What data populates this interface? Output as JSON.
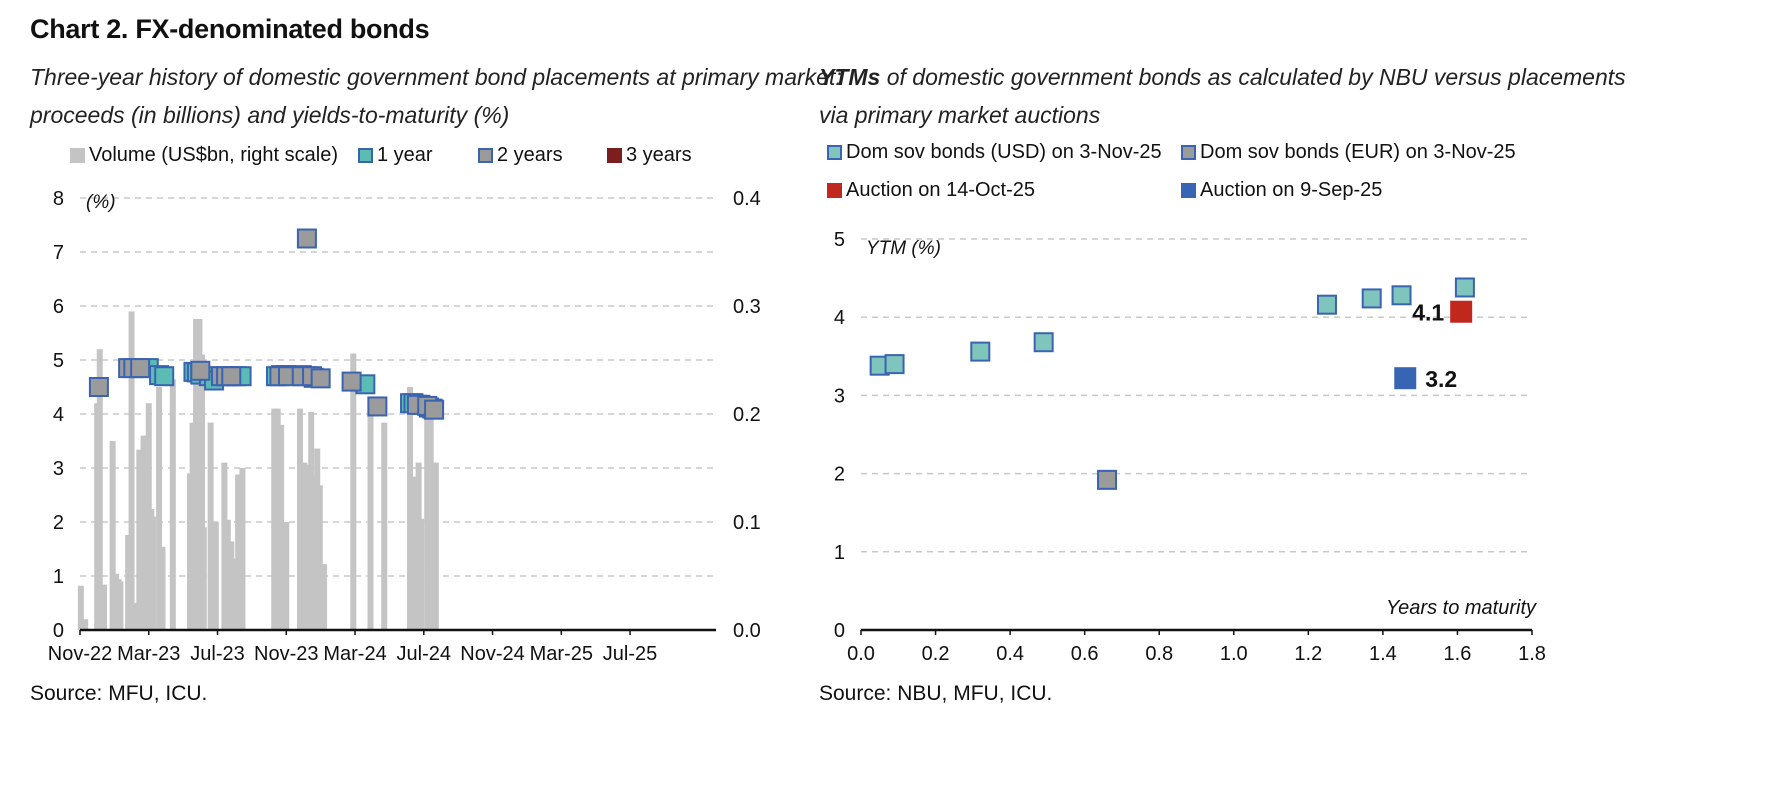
{
  "title": "Chart 2. FX-denominated bonds",
  "left": {
    "subtitle_line1": "Three-year history of domestic government bond placements at primary market:",
    "subtitle_line2": "proceeds (in billions) and yields-to-maturity (%)",
    "source": "Source: MFU, ICU."
  },
  "right": {
    "subtitle_line1_bold": "YTMs",
    "subtitle_line1_rest": " of domestic government bonds as calculated by NBU versus placements",
    "subtitle_line2": "via primary market auctions",
    "source": "Source: NBU, MFU, ICU."
  },
  "colors": {
    "volume": "#c4c4c4",
    "one_year_fill": "#5bbcb6",
    "two_year_fill": "#9b9b9b",
    "three_year_fill": "#7a1e1e",
    "usd_fill": "#7fc4bd",
    "eur_fill": "#9b9b9b",
    "marker_border": "#3a63b0",
    "auction_oct": "#c0281e",
    "auction_sep": "#3765b3"
  },
  "chart_data": [
    {
      "type": "bar+scatter",
      "legend": [
        {
          "label": "Volume (US$bn, right scale)",
          "kind": "volume"
        },
        {
          "label": "1 year",
          "kind": "one_year"
        },
        {
          "label": "2 years",
          "kind": "two_year"
        },
        {
          "label": "3 years",
          "kind": "three_year"
        }
      ],
      "y_left": {
        "label": "(%)",
        "min": 0,
        "max": 8,
        "ticks": [
          "0",
          "1",
          "2",
          "3",
          "4",
          "5",
          "6",
          "7",
          "8"
        ]
      },
      "y_right": {
        "min": 0,
        "max": 0.4,
        "ticks": [
          "0.0",
          "0.1",
          "0.2",
          "0.3",
          "0.4"
        ]
      },
      "x_ticks": [
        "Nov-22",
        "Mar-23",
        "Jul-23",
        "Nov-23",
        "Mar-24",
        "Jul-24",
        "Nov-24",
        "Mar-25",
        "Jul-25"
      ],
      "x_range_months": 37,
      "volume_bars": [
        [
          0.05,
          0.041
        ],
        [
          0.3,
          0.01
        ],
        [
          1.0,
          0.21
        ],
        [
          1.15,
          0.26
        ],
        [
          1.4,
          0.042
        ],
        [
          1.9,
          0.175
        ],
        [
          2.1,
          0.052
        ],
        [
          2.25,
          0.047
        ],
        [
          2.35,
          0.045
        ],
        [
          2.8,
          0.088
        ],
        [
          3.0,
          0.295
        ],
        [
          3.2,
          0.025
        ],
        [
          3.45,
          0.167
        ],
        [
          3.55,
          0.12
        ],
        [
          3.7,
          0.18
        ],
        [
          3.85,
          0.101
        ],
        [
          4.0,
          0.21
        ],
        [
          4.15,
          0.112
        ],
        [
          4.25,
          0.105
        ],
        [
          4.6,
          0.225
        ],
        [
          4.8,
          0.077
        ],
        [
          5.4,
          0.232
        ],
        [
          6.4,
          0.145
        ],
        [
          6.55,
          0.192
        ],
        [
          6.75,
          0.288
        ],
        [
          6.95,
          0.288
        ],
        [
          7.1,
          0.255
        ],
        [
          7.2,
          0.095
        ],
        [
          7.6,
          0.192
        ],
        [
          7.8,
          0.093
        ],
        [
          7.9,
          0.1
        ],
        [
          8.4,
          0.155
        ],
        [
          8.6,
          0.102
        ],
        [
          8.8,
          0.082
        ],
        [
          9.0,
          0.066
        ],
        [
          9.2,
          0.144
        ],
        [
          9.3,
          0.065
        ],
        [
          9.45,
          0.15
        ],
        [
          11.3,
          0.205
        ],
        [
          11.5,
          0.205
        ],
        [
          11.7,
          0.19
        ],
        [
          12.0,
          0.1
        ],
        [
          12.8,
          0.205
        ],
        [
          13.05,
          0.155
        ],
        [
          13.25,
          0.153
        ],
        [
          13.45,
          0.202
        ],
        [
          13.65,
          0.143
        ],
        [
          13.8,
          0.168
        ],
        [
          13.95,
          0.134
        ],
        [
          14.05,
          0.061
        ],
        [
          14.2,
          0.061
        ],
        [
          15.9,
          0.256
        ],
        [
          16.9,
          0.202
        ],
        [
          17.7,
          0.192
        ],
        [
          19.2,
          0.225
        ],
        [
          19.35,
          0.141
        ],
        [
          19.5,
          0.142
        ],
        [
          19.7,
          0.155
        ],
        [
          19.85,
          0.103
        ],
        [
          20.2,
          0.199
        ],
        [
          20.4,
          0.195
        ],
        [
          20.5,
          0.155
        ],
        [
          20.7,
          0.155
        ]
      ],
      "one_year": [
        [
          4.0,
          4.85
        ],
        [
          4.6,
          4.72
        ],
        [
          4.9,
          4.7
        ],
        [
          6.6,
          4.78
        ],
        [
          6.8,
          4.77
        ],
        [
          7.0,
          4.73
        ],
        [
          7.5,
          4.7
        ],
        [
          7.8,
          4.62
        ],
        [
          9.1,
          4.7
        ],
        [
          9.4,
          4.7
        ],
        [
          11.4,
          4.7
        ],
        [
          11.7,
          4.72
        ],
        [
          12.0,
          4.72
        ],
        [
          12.9,
          4.72
        ],
        [
          13.2,
          4.7
        ],
        [
          13.6,
          4.67
        ],
        [
          16.6,
          4.55
        ],
        [
          19.2,
          4.2
        ],
        [
          19.4,
          4.2
        ],
        [
          19.8,
          4.17
        ],
        [
          20.3,
          4.12
        ],
        [
          20.5,
          4.1
        ]
      ],
      "two_year": [
        [
          1.1,
          4.5
        ],
        [
          2.8,
          4.85
        ],
        [
          3.1,
          4.85
        ],
        [
          3.5,
          4.85
        ],
        [
          7.0,
          4.8
        ],
        [
          8.2,
          4.7
        ],
        [
          8.5,
          4.7
        ],
        [
          8.8,
          4.7
        ],
        [
          11.6,
          4.7
        ],
        [
          12.1,
          4.7
        ],
        [
          12.9,
          4.7
        ],
        [
          13.5,
          4.7
        ],
        [
          14.0,
          4.66
        ],
        [
          13.2,
          7.25
        ],
        [
          15.8,
          4.6
        ],
        [
          17.3,
          4.14
        ],
        [
          19.6,
          4.17
        ],
        [
          20.2,
          4.15
        ],
        [
          20.6,
          4.08
        ]
      ]
    },
    {
      "type": "scatter",
      "legend": [
        {
          "label": "Dom sov bonds (USD) on 3-Nov-25",
          "kind": "usd"
        },
        {
          "label": "Dom sov bonds (EUR) on 3-Nov-25",
          "kind": "eur"
        },
        {
          "label": "Auction on 14-Oct-25",
          "kind": "auction_oct"
        },
        {
          "label": "Auction on 9-Sep-25",
          "kind": "auction_sep"
        }
      ],
      "ylabel": "YTM (%)",
      "xlabel": "Years to maturity",
      "xlim": [
        0,
        1.8
      ],
      "ylim": [
        0,
        5
      ],
      "x_ticks": [
        "0.0",
        "0.2",
        "0.4",
        "0.6",
        "0.8",
        "1.0",
        "1.2",
        "1.4",
        "1.6",
        "1.8"
      ],
      "y_ticks": [
        "0",
        "1",
        "2",
        "3",
        "4",
        "5"
      ],
      "usd": [
        [
          0.05,
          3.38
        ],
        [
          0.09,
          3.4
        ],
        [
          0.32,
          3.56
        ],
        [
          0.49,
          3.68
        ],
        [
          1.25,
          4.16
        ],
        [
          1.37,
          4.24
        ],
        [
          1.45,
          4.28
        ],
        [
          1.62,
          4.38
        ]
      ],
      "eur": [
        [
          0.66,
          1.92
        ]
      ],
      "auction_oct": {
        "x": 1.61,
        "y": 4.07,
        "label": "4.1"
      },
      "auction_sep": {
        "x": 1.46,
        "y": 3.22,
        "label": "3.2"
      }
    }
  ]
}
